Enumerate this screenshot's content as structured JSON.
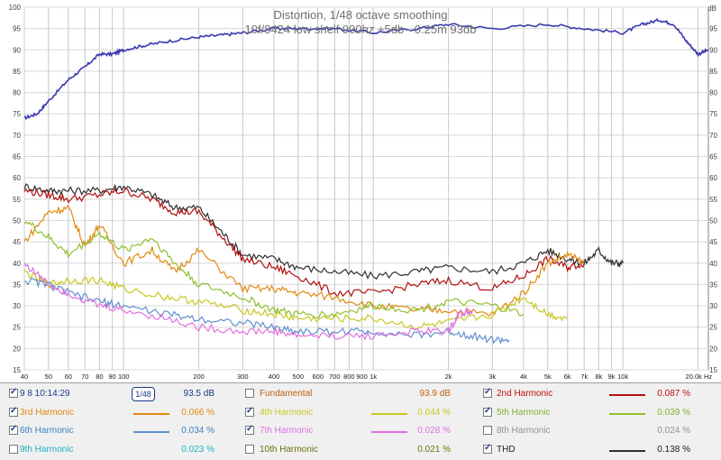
{
  "chart_data": {
    "type": "line",
    "title": "Distortion, 1/48 octave smoothing",
    "subtitle": "10f/8424 low shelf 900hz +5db - 0.25m 93db",
    "ylabel": "dB",
    "xlabel": "Hz",
    "x_scale": "log",
    "xlim": [
      40,
      22000
    ],
    "ylim": [
      15,
      100
    ],
    "grid": true,
    "yticks": [
      15,
      20,
      25,
      30,
      35,
      40,
      45,
      50,
      55,
      60,
      65,
      70,
      75,
      80,
      85,
      90,
      95,
      100
    ],
    "xtick_labels": [
      "40",
      "50",
      "60",
      "70",
      "80",
      "90",
      "100",
      "200",
      "300",
      "400",
      "500",
      "600",
      "700",
      "800",
      "900",
      "1k",
      "2k",
      "3k",
      "4k",
      "5k",
      "6k",
      "7k",
      "8k",
      "9k",
      "10k",
      "20.0k Hz"
    ],
    "xtick_values": [
      40,
      50,
      60,
      70,
      80,
      90,
      100,
      200,
      300,
      400,
      500,
      600,
      700,
      800,
      900,
      1000,
      2000,
      3000,
      4000,
      5000,
      6000,
      7000,
      8000,
      9000,
      10000,
      20000
    ],
    "series": [
      {
        "name": "9 8 10:14:29",
        "color": "#3a3ab0",
        "x": [
          40,
          45,
          50,
          60,
          70,
          80,
          90,
          100,
          120,
          150,
          200,
          250,
          300,
          400,
          500,
          700,
          1000,
          1500,
          2000,
          3000,
          5000,
          7000,
          10000,
          12000,
          14000,
          16000,
          18000,
          20000,
          22000
        ],
        "y": [
          74,
          75,
          78,
          83,
          86,
          89,
          89,
          90,
          91,
          92,
          93,
          93.5,
          94,
          95,
          95,
          95,
          94,
          95,
          96,
          95,
          96,
          95,
          94,
          96,
          97,
          96,
          92,
          89,
          90
        ]
      },
      {
        "name": "THD",
        "color": "#303030",
        "x": [
          40,
          50,
          60,
          80,
          100,
          130,
          160,
          200,
          250,
          300,
          400,
          500,
          700,
          1000,
          1500,
          2000,
          3000,
          4000,
          5000,
          6000,
          7000,
          8000,
          9000,
          10000
        ],
        "y": [
          58,
          57,
          57,
          57,
          58,
          56,
          53,
          53,
          47,
          42,
          41,
          39,
          38,
          37,
          38,
          39,
          38,
          40,
          43,
          41,
          40,
          43,
          40,
          40
        ]
      },
      {
        "name": "2nd Harmonic",
        "color": "#b01010",
        "x": [
          40,
          50,
          60,
          80,
          100,
          130,
          160,
          200,
          250,
          300,
          400,
          500,
          700,
          1000,
          1500,
          2000,
          3000,
          4000,
          5000,
          6000,
          7000
        ],
        "y": [
          57,
          56,
          55,
          56,
          57,
          55,
          52,
          52,
          46,
          41,
          39,
          37,
          33,
          33,
          35,
          36,
          34,
          37,
          41,
          39,
          40
        ]
      },
      {
        "name": "3rd Harmonic",
        "color": "#e08a10",
        "x": [
          40,
          50,
          60,
          70,
          80,
          100,
          130,
          160,
          200,
          300,
          400,
          500,
          700,
          1000,
          1500,
          2000,
          3000,
          4000,
          5000,
          6000,
          7000
        ],
        "y": [
          45,
          52,
          53,
          44,
          49,
          40,
          43,
          38,
          43,
          34,
          34,
          33,
          32,
          30,
          29,
          29,
          28,
          33,
          40,
          42,
          40
        ]
      },
      {
        "name": "4th Harmonic",
        "color": "#c8c820",
        "x": [
          40,
          50,
          60,
          80,
          100,
          150,
          200,
          300,
          400,
          500,
          700,
          1000,
          1500,
          2000,
          3000,
          4000,
          5000,
          6000
        ],
        "y": [
          38,
          35,
          36,
          36,
          34,
          32,
          31,
          29,
          28,
          27,
          27,
          27,
          25,
          26,
          28,
          32,
          28,
          27
        ]
      },
      {
        "name": "5th Harmonic",
        "color": "#90c030",
        "x": [
          40,
          50,
          60,
          80,
          100,
          130,
          160,
          200,
          300,
          400,
          500,
          700,
          1000,
          1500,
          2000,
          3000,
          4000
        ],
        "y": [
          50,
          46,
          42,
          47,
          43,
          46,
          40,
          35,
          32,
          29,
          28,
          28,
          30,
          29,
          31,
          30,
          28
        ]
      },
      {
        "name": "6th Harmonic",
        "color": "#6090d0",
        "x": [
          40,
          50,
          60,
          80,
          100,
          150,
          200,
          300,
          400,
          500,
          700,
          1000,
          1500,
          2000,
          2500,
          3000,
          3500
        ],
        "y": [
          36,
          35,
          33,
          31,
          30,
          28,
          27,
          26,
          25,
          24,
          24,
          24,
          23,
          24,
          23,
          22,
          22
        ]
      },
      {
        "name": "7th Harmonic",
        "color": "#e070e0",
        "x": [
          40,
          50,
          60,
          80,
          100,
          150,
          200,
          300,
          400,
          500,
          700,
          1000,
          1500,
          2000,
          2200,
          2500
        ],
        "y": [
          40,
          35,
          33,
          30,
          29,
          27,
          25,
          24,
          24,
          23,
          23,
          23,
          24,
          24,
          28,
          29
        ]
      }
    ]
  },
  "legend": {
    "rows": [
      [
        {
          "name": "9 8 10:14:29",
          "checked": true,
          "color": "#1a3a8c",
          "value": "93.5 dB",
          "line": null,
          "smooth": "1/48"
        },
        {
          "name": "Fundamental",
          "checked": false,
          "color": "#c06010",
          "value": "93.9 dB",
          "line": null
        },
        {
          "name": "2nd Harmonic",
          "checked": true,
          "color": "#c01010",
          "value": "0.087 %",
          "line": "#b01010"
        }
      ],
      [
        {
          "name": "3rd Harmonic",
          "checked": true,
          "color": "#e08a10",
          "value": "0.066 %",
          "line": "#e08a10"
        },
        {
          "name": "4th Harmonic",
          "checked": true,
          "color": "#c8c820",
          "value": "0.044 %",
          "line": "#c8c820"
        },
        {
          "name": "5th Harmonic",
          "checked": true,
          "color": "#80b030",
          "value": "0.039 %",
          "line": "#90c030"
        }
      ],
      [
        {
          "name": "6th Harmonic",
          "checked": true,
          "color": "#4080c0",
          "value": "0.034 %",
          "line": "#6090d0"
        },
        {
          "name": "7th Harmonic",
          "checked": true,
          "color": "#e070e0",
          "value": "0.028 %",
          "line": "#e070e0"
        },
        {
          "name": "8th Harmonic",
          "checked": false,
          "color": "#909090",
          "value": "0.024 %",
          "line": null
        }
      ],
      [
        {
          "name": "9th Harmonic",
          "checked": false,
          "color": "#20b0c0",
          "value": "0.023 %",
          "line": null
        },
        {
          "name": "10th Harmonic",
          "checked": false,
          "color": "#707010",
          "value": "0.021 %",
          "line": null
        },
        {
          "name": "THD",
          "checked": true,
          "color": "#202020",
          "value": "0.138 %",
          "line": "#303030"
        }
      ]
    ]
  }
}
